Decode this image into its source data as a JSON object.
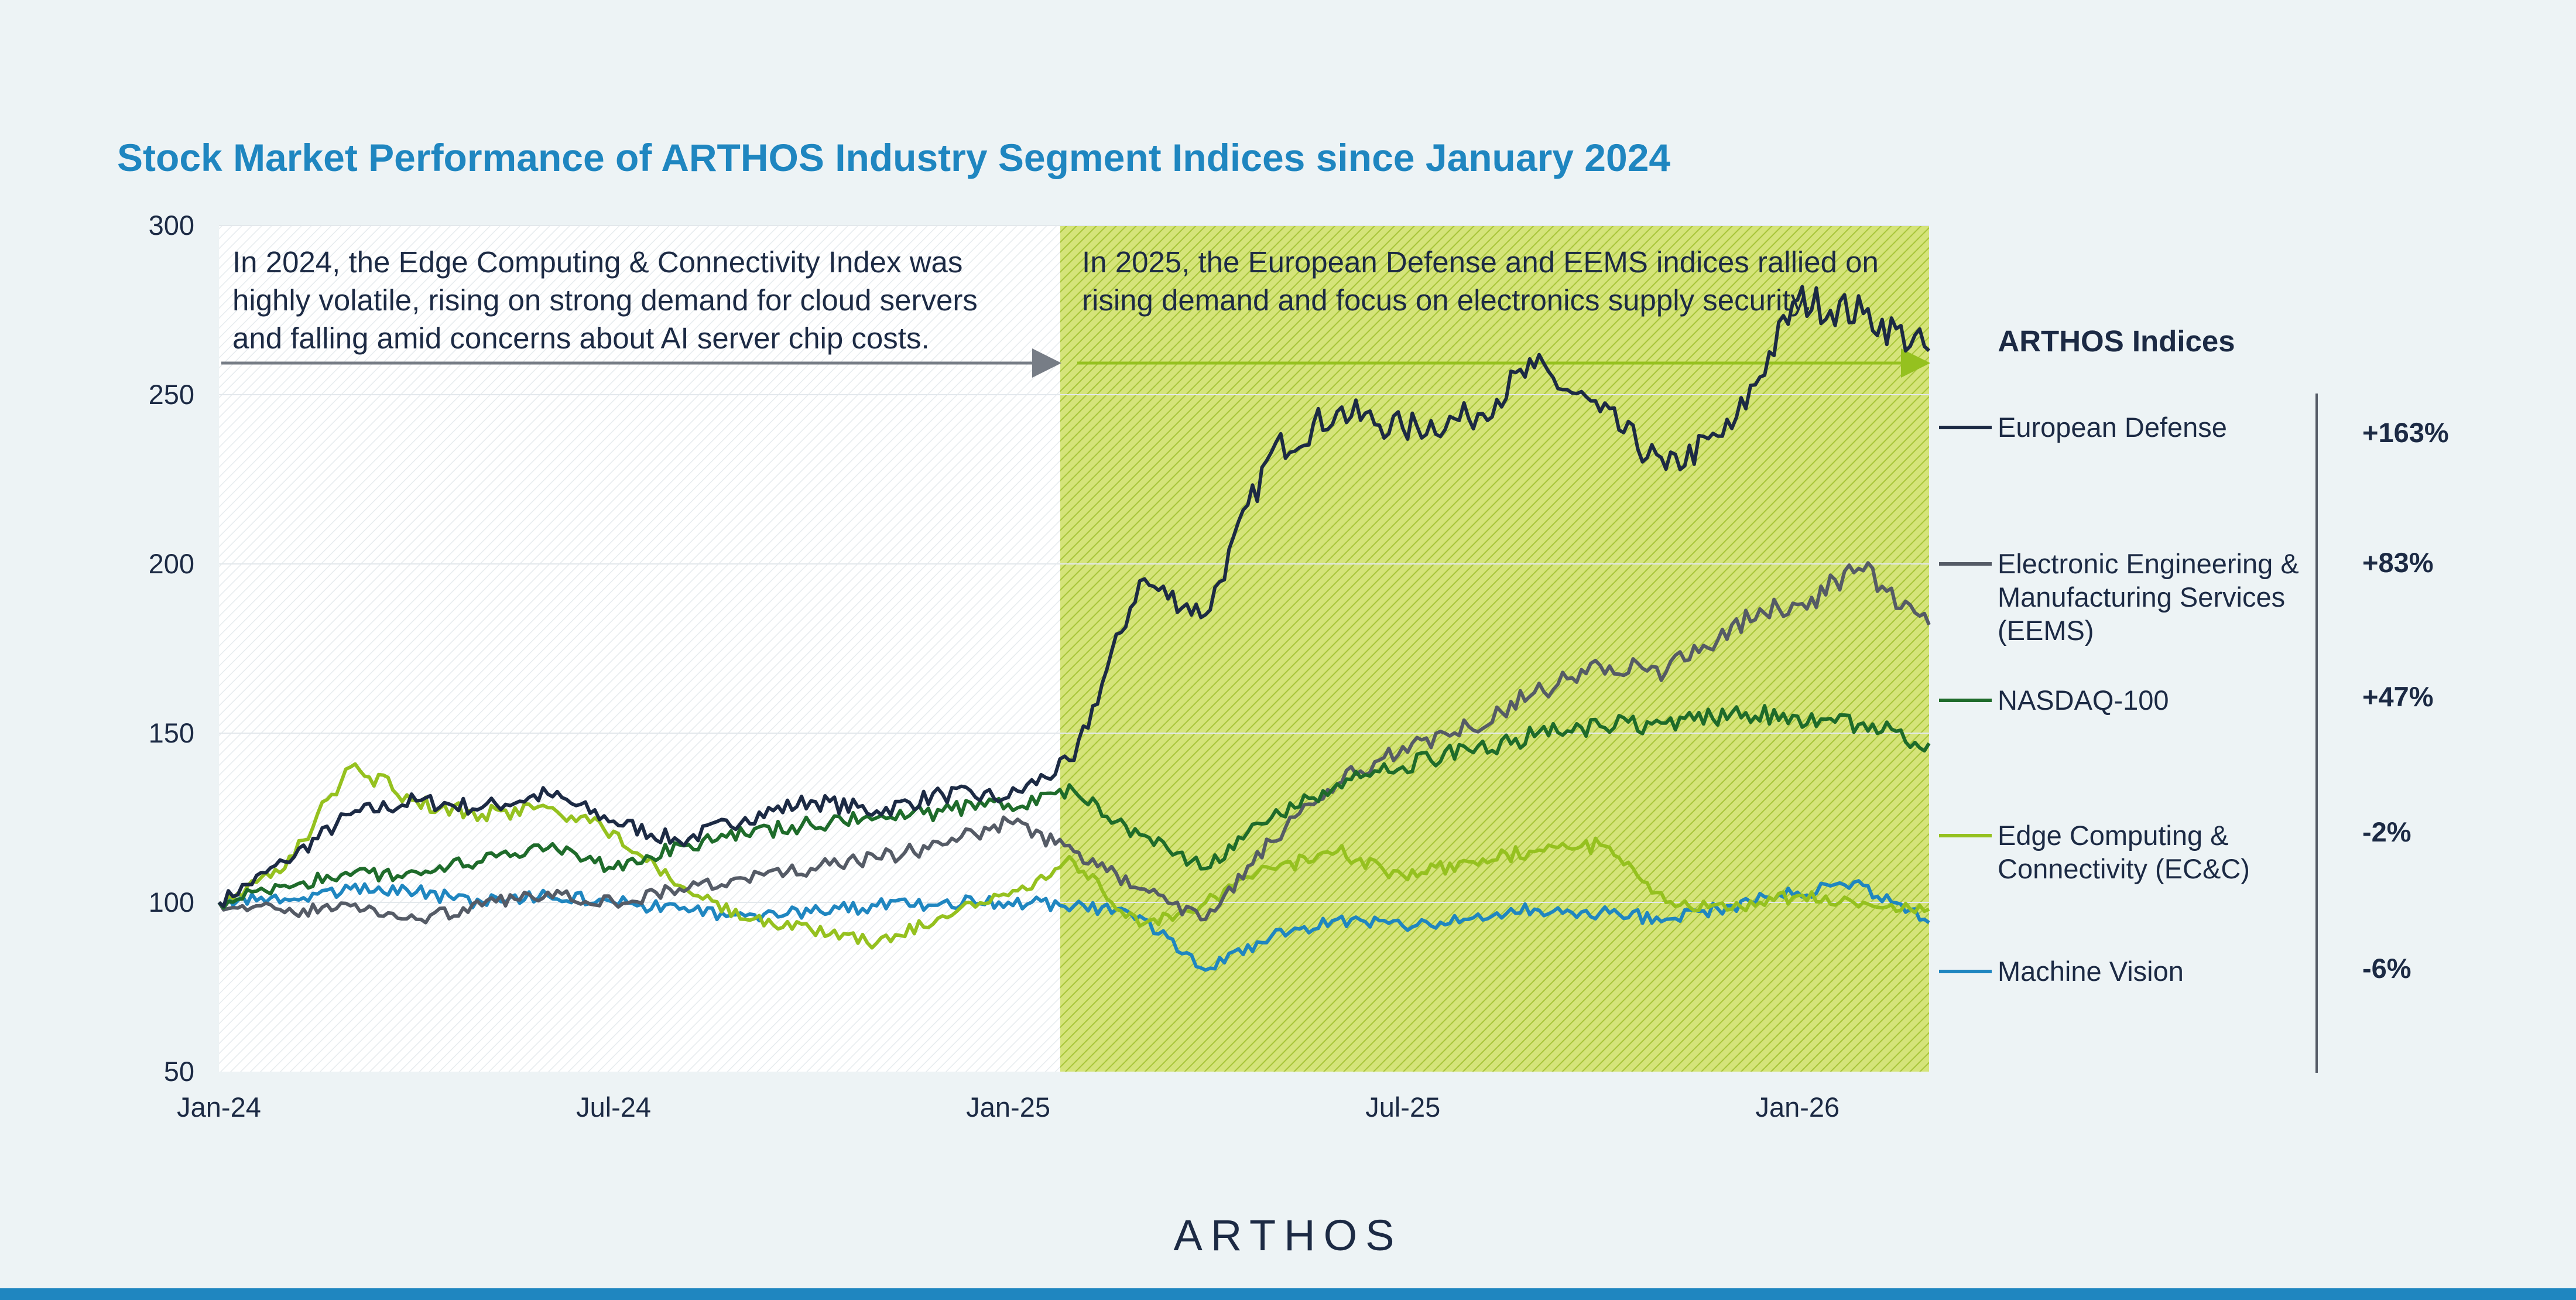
{
  "chart_data": {
    "type": "line",
    "title": "Stock Market Performance of ARTHOS Industry Segment Indices since January 2024",
    "xlabel": "",
    "ylabel": "",
    "x_ticks": [
      "Jan-24",
      "Jul-24",
      "Jan-25",
      "Jul-25",
      "Jan-26"
    ],
    "y_ticks": [
      300,
      250,
      200,
      150,
      100,
      50
    ],
    "ylim": [
      50,
      300
    ],
    "xlim": [
      "2024-01",
      "2026-03"
    ],
    "grid": true,
    "x": [
      "2024-01",
      "2024-02",
      "2024-03",
      "2024-04",
      "2024-05",
      "2024-06",
      "2024-07",
      "2024-08",
      "2024-09",
      "2024-10",
      "2024-11",
      "2024-12",
      "2025-01",
      "2025-02",
      "2025-03",
      "2025-04",
      "2025-05",
      "2025-06",
      "2025-07",
      "2025-08",
      "2025-09",
      "2025-10",
      "2025-11",
      "2025-12",
      "2026-01",
      "2026-02",
      "2026-03"
    ],
    "series": [
      {
        "name": "European Defense",
        "color": "#1c2a44",
        "values": [
          100,
          112,
          126,
          130,
          128,
          132,
          124,
          118,
          125,
          130,
          127,
          132,
          131,
          142,
          195,
          185,
          233,
          245,
          240,
          243,
          258,
          245,
          228,
          240,
          278,
          274,
          263
        ]
      },
      {
        "name": "Electronic Engineering & Manufacturing Services (EEMS)",
        "color": "#555b66",
        "values": [
          100,
          97,
          99,
          95,
          99,
          103,
          100,
          104,
          107,
          110,
          113,
          117,
          124,
          115,
          104,
          95,
          118,
          135,
          146,
          152,
          162,
          170,
          168,
          182,
          188,
          198,
          182
        ]
      },
      {
        "name": "NASDAQ-100",
        "color": "#1e6b2a",
        "values": [
          100,
          105,
          108,
          109,
          112,
          116,
          110,
          117,
          120,
          123,
          125,
          127,
          129,
          133,
          120,
          110,
          125,
          135,
          140,
          145,
          149,
          152,
          153,
          156,
          155,
          153,
          147
        ]
      },
      {
        "name": "Edge Computing & Connectivity (EC&C)",
        "color": "#95c11f",
        "values": [
          100,
          110,
          140,
          130,
          126,
          128,
          121,
          105,
          95,
          92,
          88,
          96,
          102,
          112,
          93,
          100,
          110,
          115,
          108,
          112,
          115,
          117,
          100,
          98,
          102,
          100,
          98
        ]
      },
      {
        "name": "Machine Vision",
        "color": "#1f86c0",
        "values": [
          100,
          101,
          104,
          103,
          100,
          102,
          100,
          98,
          96,
          97,
          99,
          100,
          100,
          99,
          96,
          80,
          90,
          95,
          93,
          95,
          98,
          97,
          95,
          99,
          103,
          105,
          94
        ]
      }
    ],
    "legend_title": "ARTHOS Indices",
    "legend_placement": "right",
    "legend_values": [
      "+163%",
      "+83%",
      "+47%",
      "-2%",
      "-6%"
    ],
    "annotations": [
      "In 2024, the Edge Computing & Connectivity Index was highly volatile, rising on strong demand for cloud servers and falling amid concerns about AI server chip costs.",
      "In 2025, the European Defense and EEMS indices rallied on rising demand and focus on electronics supply security."
    ]
  },
  "annotation_lines": {
    "left": [
      "In 2024, the Edge Computing & Connectivity Index was",
      "highly volatile, rising on strong demand for cloud servers",
      "and falling amid concerns about AI server chip costs."
    ],
    "right": [
      "In 2025, the European Defense and EEMS indices rallied on",
      "rising demand and focus on electronics supply security."
    ]
  },
  "legend_lines": [
    [
      "European Defense"
    ],
    [
      "Electronic Engineering &",
      "Manufacturing Services",
      "(EEMS)"
    ],
    [
      "NASDAQ-100"
    ],
    [
      "Edge Computing &",
      "Connectivity (EC&C)"
    ],
    [
      "Machine Vision"
    ]
  ],
  "brand": {
    "logo_text": "ARTHOS",
    "accent": "#1f86c0",
    "dark": "#1c2a44",
    "lime": "#95c11f"
  }
}
